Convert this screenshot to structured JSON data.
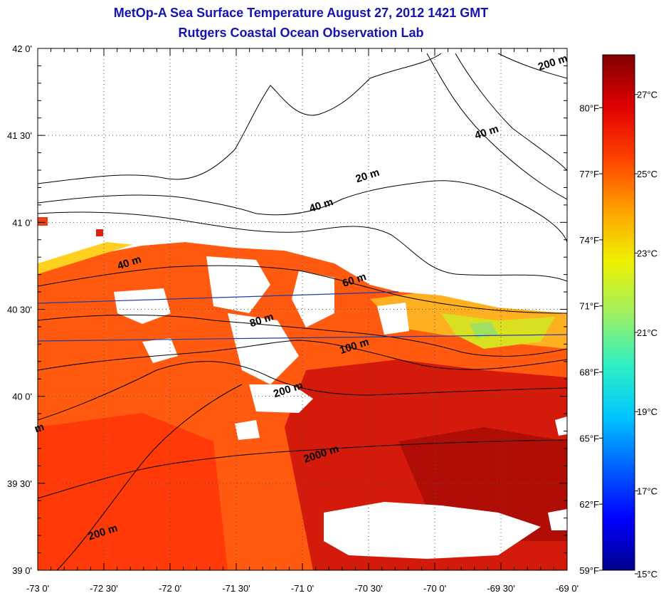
{
  "title": {
    "line1": "MetOp-A Sea Surface Temperature August 27, 2012 1421 GMT",
    "line2": "Rutgers Coastal Ocean Observation Lab"
  },
  "map": {
    "lon_range": [
      -73,
      -69
    ],
    "lat_range": [
      39,
      42
    ],
    "x_ticks": [
      "-73 0'",
      "-72 30'",
      "-72 0'",
      "-71 30'",
      "-71 0'",
      "-70 30'",
      "-70 0'",
      "-69 30'",
      "-69 0'"
    ],
    "y_ticks": [
      "42 0'",
      "41 30'",
      "41 0'",
      "40 30'",
      "40 0'",
      "39 30'",
      "39 0'"
    ],
    "contour_labels": [
      {
        "text": "200 m",
        "lon": -69.1,
        "lat": 41.9
      },
      {
        "text": "40 m",
        "lon": -69.6,
        "lat": 41.5
      },
      {
        "text": "20 m",
        "lon": -70.5,
        "lat": 41.25
      },
      {
        "text": "40 m",
        "lon": -70.85,
        "lat": 41.08
      },
      {
        "text": "40 m",
        "lon": -72.3,
        "lat": 40.75
      },
      {
        "text": "60 m",
        "lon": -70.6,
        "lat": 40.65
      },
      {
        "text": "80 m",
        "lon": -71.3,
        "lat": 40.42
      },
      {
        "text": "100 m",
        "lon": -70.6,
        "lat": 40.27
      },
      {
        "text": "200 m",
        "lon": -71.1,
        "lat": 40.02
      },
      {
        "text": "2000 m",
        "lon": -70.85,
        "lat": 39.65
      },
      {
        "text": "200 m",
        "lon": -72.5,
        "lat": 39.2
      },
      {
        "text": "m",
        "lon": -72.98,
        "lat": 39.8
      }
    ]
  },
  "colorbar": {
    "celsius_labels": [
      "27°C",
      "25°C",
      "23°C",
      "21°C",
      "19°C",
      "17°C",
      "15°C"
    ],
    "fahrenheit_labels": [
      "80°F",
      "77°F",
      "74°F",
      "71°F",
      "68°F",
      "65°F",
      "62°F",
      "59°F"
    ],
    "colors": [
      "#00008c",
      "#0000ff",
      "#0060ff",
      "#00c8ff",
      "#30f0c0",
      "#a0f060",
      "#f0f000",
      "#ffa000",
      "#ff4000",
      "#e00000",
      "#800000"
    ]
  }
}
